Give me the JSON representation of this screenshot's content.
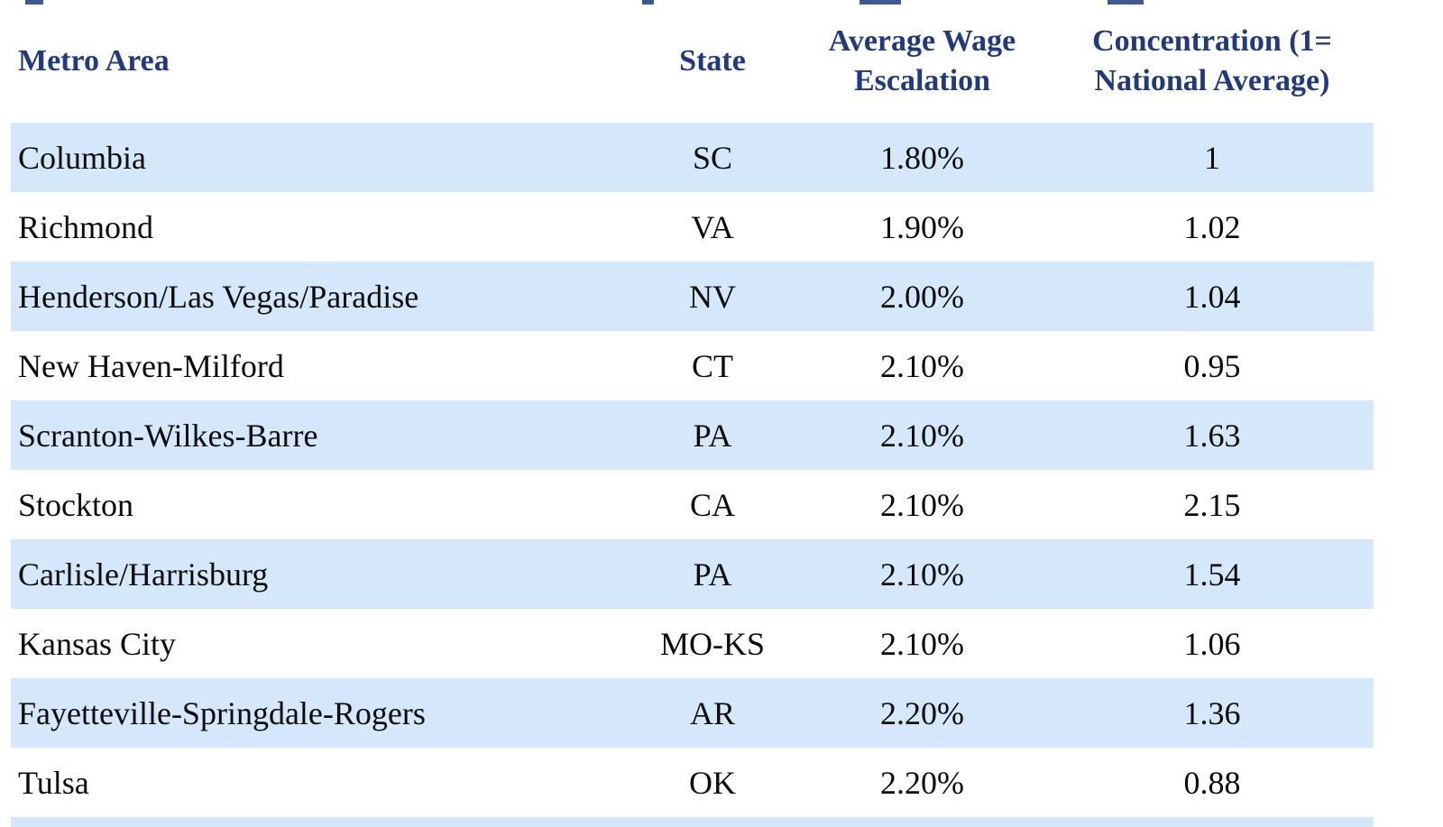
{
  "colors": {
    "background": "#ffffff",
    "row_highlight": "#d4e7fb",
    "header_text": "#21397e",
    "body_text": "#0b0b0b"
  },
  "table": {
    "headers": [
      {
        "lines": [
          "Metro Area"
        ]
      },
      {
        "lines": [
          "State"
        ]
      },
      {
        "lines": [
          "Average Wage",
          "Escalation"
        ]
      },
      {
        "lines": [
          "Concentration (1=",
          "National Average)"
        ]
      }
    ],
    "rows": [
      [
        "Columbia",
        "SC",
        "1.80%",
        "1"
      ],
      [
        "Richmond",
        "VA",
        "1.90%",
        "1.02"
      ],
      [
        "Henderson/Las Vegas/Paradise",
        "NV",
        "2.00%",
        "1.04"
      ],
      [
        "New Haven-Milford",
        "CT",
        "2.10%",
        "0.95"
      ],
      [
        "Scranton-Wilkes-Barre",
        "PA",
        "2.10%",
        "1.63"
      ],
      [
        "Stockton",
        "CA",
        "2.10%",
        "2.15"
      ],
      [
        "Carlisle/Harrisburg",
        "PA",
        "2.10%",
        "1.54"
      ],
      [
        "Kansas City",
        "MO-KS",
        "2.10%",
        "1.06"
      ],
      [
        "Fayetteville-Springdale-Rogers",
        "AR",
        "2.20%",
        "1.36"
      ],
      [
        "Tulsa",
        "OK",
        "2.20%",
        "0.88"
      ]
    ]
  }
}
